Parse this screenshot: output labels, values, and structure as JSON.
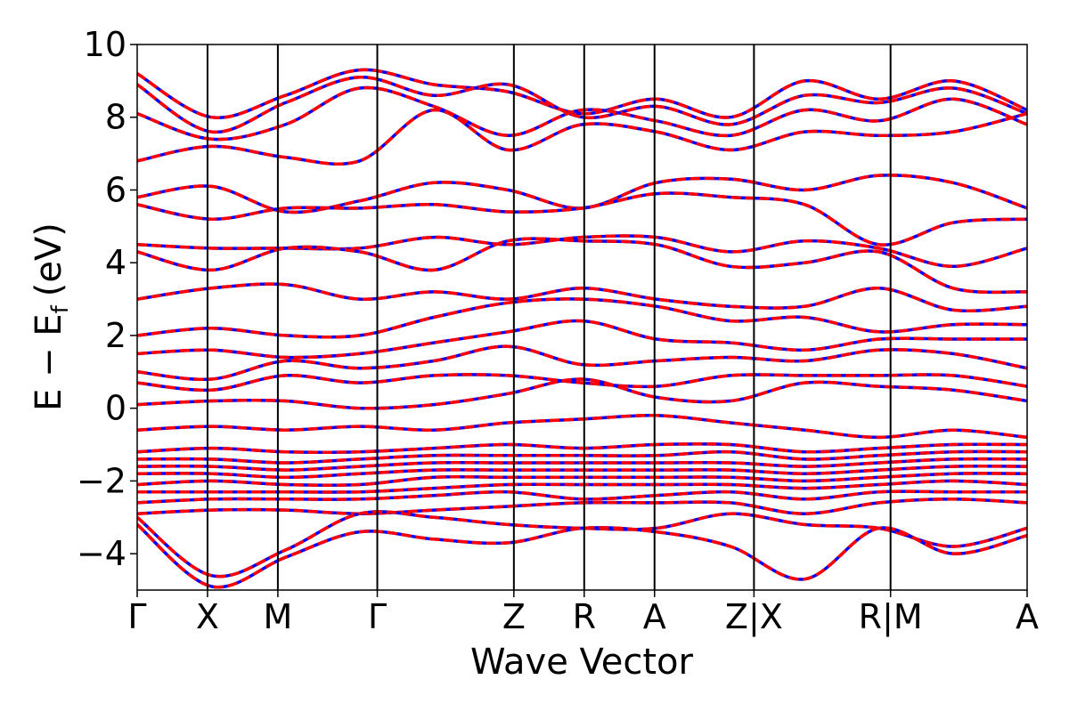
{
  "chart_data": {
    "type": "line",
    "title": "",
    "xlabel": "Wave Vector",
    "ylabel": {
      "main": "E − E",
      "sub": "f",
      "unit": "(eV)"
    },
    "ylim": [
      -5,
      10
    ],
    "yticks": [
      "−4",
      "−2",
      "0",
      "2",
      "4",
      "6",
      "8",
      "10"
    ],
    "ytick_values": [
      -4,
      -2,
      0,
      2,
      4,
      6,
      8,
      10
    ],
    "kpath": [
      {
        "label": "Γ",
        "x": 0.0
      },
      {
        "label": "X",
        "x": 0.5
      },
      {
        "label": "M",
        "x": 1.0
      },
      {
        "label": "Γ",
        "x": 1.707
      },
      {
        "label": "Z",
        "x": 2.678
      },
      {
        "label": "R",
        "x": 3.178
      },
      {
        "label": "A",
        "x": 3.678
      },
      {
        "label": "Z|X",
        "x": 4.385
      },
      {
        "label": "R|M",
        "x": 5.356
      },
      {
        "label": "A",
        "x": 6.327
      }
    ],
    "xlim": [
      0,
      6.327
    ],
    "grid": false,
    "colors": {
      "series_a": "#0000ff",
      "series_b": "#ff0000"
    },
    "series": [
      {
        "line_style": "solid",
        "color": "#0000ff"
      },
      {
        "line_style": "dashed",
        "color": "#ff0000"
      }
    ],
    "bands_approx": [
      {
        "y": [
          9.2,
          8.0,
          8.6,
          9.3,
          8.9,
          8.7,
          8.1,
          8.5,
          8.0,
          9.0,
          8.5,
          9.0,
          8.2
        ]
      },
      {
        "y": [
          8.9,
          7.6,
          8.4,
          9.1,
          8.6,
          8.9,
          8.0,
          8.3,
          7.8,
          8.6,
          8.4,
          8.8,
          8.1
        ]
      },
      {
        "y": [
          8.1,
          7.4,
          7.8,
          8.8,
          8.3,
          7.5,
          8.2,
          7.9,
          7.5,
          8.2,
          7.9,
          8.5,
          7.8
        ]
      },
      {
        "y": [
          6.8,
          7.2,
          6.9,
          6.8,
          8.2,
          7.1,
          7.8,
          7.6,
          7.1,
          7.6,
          7.5,
          7.6,
          8.1
        ]
      },
      {
        "y": [
          5.8,
          6.1,
          5.4,
          5.7,
          6.2,
          6.0,
          5.5,
          6.2,
          6.3,
          6.0,
          6.4,
          6.2,
          5.5
        ]
      },
      {
        "y": [
          5.6,
          5.2,
          5.5,
          5.5,
          5.6,
          5.4,
          5.5,
          5.9,
          5.8,
          5.6,
          4.5,
          5.1,
          5.2
        ]
      },
      {
        "y": [
          4.5,
          4.4,
          4.4,
          4.4,
          4.7,
          4.5,
          4.7,
          4.7,
          4.3,
          4.6,
          4.4,
          3.9,
          4.4
        ]
      },
      {
        "y": [
          4.3,
          3.8,
          4.4,
          4.3,
          3.8,
          4.6,
          4.6,
          4.5,
          3.9,
          4.0,
          4.3,
          3.3,
          3.2
        ]
      },
      {
        "y": [
          3.0,
          3.3,
          3.4,
          3.0,
          3.2,
          3.0,
          3.3,
          3.0,
          2.8,
          2.8,
          3.3,
          2.7,
          2.8
        ]
      },
      {
        "y": [
          2.0,
          2.2,
          2.0,
          2.0,
          2.5,
          2.9,
          3.0,
          2.8,
          2.4,
          2.5,
          2.1,
          2.3,
          2.3
        ]
      },
      {
        "y": [
          1.5,
          1.6,
          1.4,
          1.5,
          1.8,
          2.1,
          2.4,
          1.9,
          1.8,
          1.6,
          1.9,
          1.9,
          1.9
        ]
      },
      {
        "y": [
          1.0,
          0.8,
          1.3,
          1.1,
          1.3,
          1.7,
          1.2,
          1.3,
          1.4,
          1.3,
          1.6,
          1.5,
          1.1
        ]
      },
      {
        "y": [
          0.7,
          0.5,
          0.9,
          0.7,
          0.9,
          0.9,
          0.7,
          0.6,
          0.9,
          0.9,
          0.9,
          0.9,
          0.6
        ]
      },
      {
        "y": [
          0.1,
          0.2,
          0.2,
          0.0,
          0.1,
          0.4,
          0.8,
          0.3,
          0.2,
          0.7,
          0.6,
          0.5,
          0.2
        ]
      },
      {
        "y": [
          -0.6,
          -0.5,
          -0.6,
          -0.5,
          -0.6,
          -0.4,
          -0.3,
          -0.2,
          -0.4,
          -0.6,
          -0.8,
          -0.6,
          -0.8
        ]
      },
      {
        "y": [
          -1.2,
          -1.1,
          -1.2,
          -1.2,
          -1.1,
          -1.0,
          -1.1,
          -1.0,
          -1.0,
          -1.2,
          -1.1,
          -1.0,
          -1.0
        ]
      },
      {
        "y": [
          -1.4,
          -1.4,
          -1.5,
          -1.4,
          -1.3,
          -1.3,
          -1.3,
          -1.3,
          -1.2,
          -1.4,
          -1.3,
          -1.2,
          -1.2
        ]
      },
      {
        "y": [
          -1.6,
          -1.6,
          -1.7,
          -1.6,
          -1.5,
          -1.5,
          -1.5,
          -1.5,
          -1.5,
          -1.6,
          -1.5,
          -1.4,
          -1.4
        ]
      },
      {
        "y": [
          -1.8,
          -1.8,
          -1.9,
          -1.8,
          -1.7,
          -1.7,
          -1.7,
          -1.7,
          -1.7,
          -1.8,
          -1.7,
          -1.6,
          -1.6
        ]
      },
      {
        "y": [
          -2.1,
          -2.0,
          -2.1,
          -2.1,
          -1.9,
          -1.9,
          -1.9,
          -1.9,
          -1.9,
          -2.0,
          -1.9,
          -1.8,
          -1.8
        ]
      },
      {
        "y": [
          -2.3,
          -2.3,
          -2.3,
          -2.3,
          -2.2,
          -2.1,
          -2.1,
          -2.1,
          -2.1,
          -2.2,
          -2.1,
          -2.0,
          -2.1
        ]
      },
      {
        "y": [
          -2.6,
          -2.5,
          -2.5,
          -2.5,
          -2.4,
          -2.3,
          -2.5,
          -2.4,
          -2.3,
          -2.5,
          -2.3,
          -2.3,
          -2.3
        ]
      },
      {
        "y": [
          -2.9,
          -2.8,
          -2.8,
          -2.9,
          -2.8,
          -2.7,
          -2.6,
          -2.6,
          -2.6,
          -2.9,
          -2.6,
          -2.5,
          -2.6
        ]
      },
      {
        "y": [
          -3.0,
          -4.6,
          -3.9,
          -2.9,
          -3.0,
          -3.2,
          -3.3,
          -3.3,
          -2.9,
          -3.2,
          -3.3,
          -3.8,
          -3.3
        ]
      },
      {
        "y": [
          -3.2,
          -4.9,
          -4.1,
          -3.4,
          -3.6,
          -3.7,
          -3.3,
          -3.4,
          -3.8,
          -4.7,
          -3.3,
          -4.0,
          -3.5
        ]
      }
    ]
  }
}
